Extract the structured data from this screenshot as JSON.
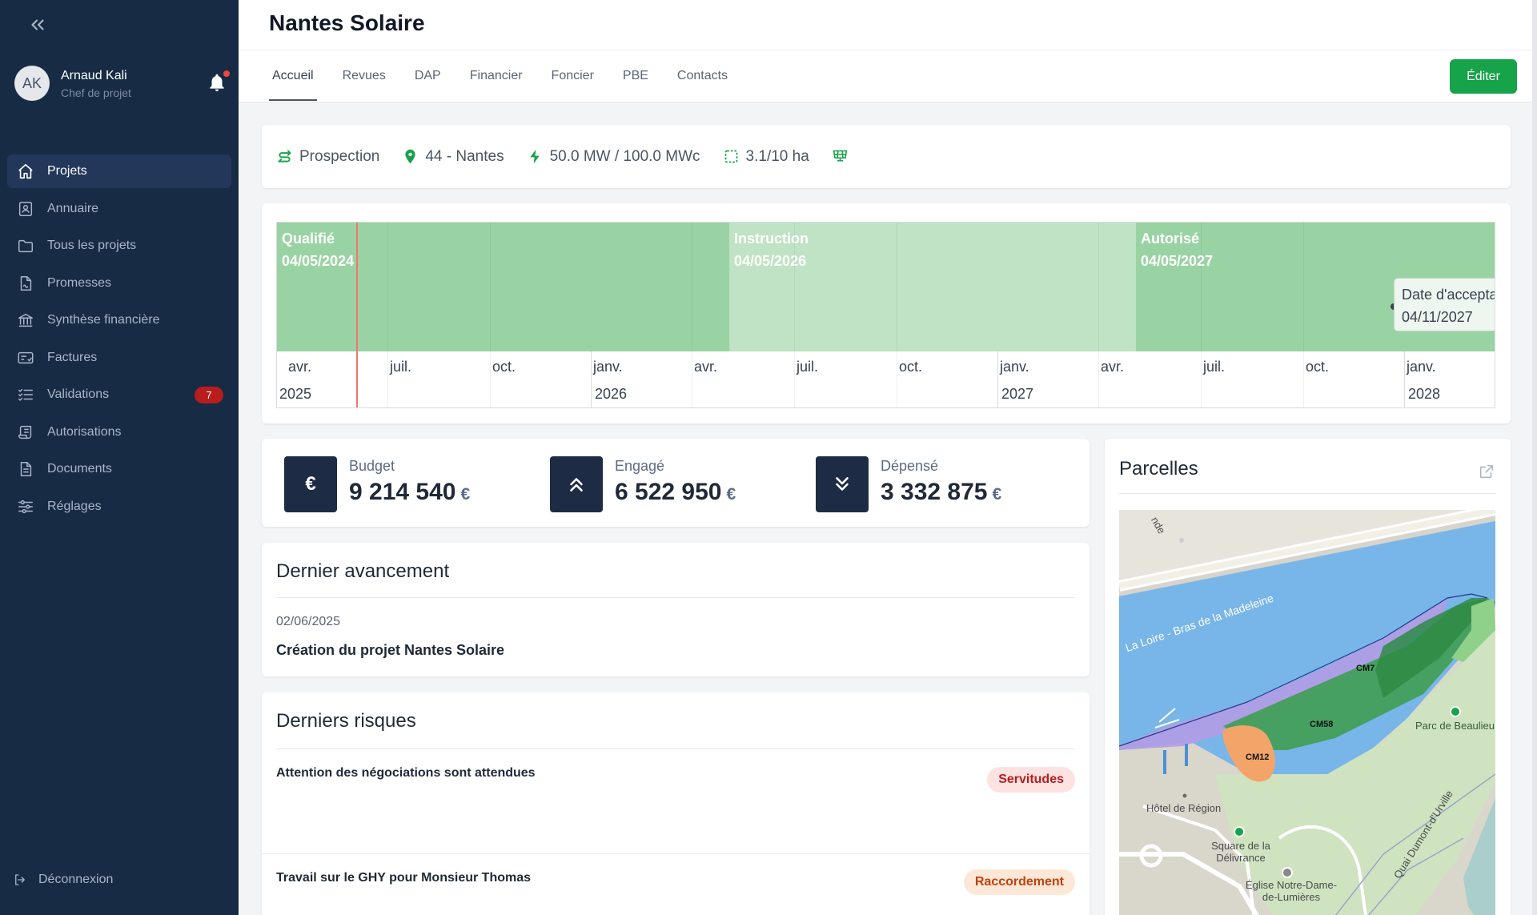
{
  "sidebar": {
    "user": {
      "initials": "AK",
      "name": "Arnaud Kali",
      "role": "Chef de projet"
    },
    "items": [
      {
        "label": "Projets",
        "icon": "home-icon",
        "active": true
      },
      {
        "label": "Annuaire",
        "icon": "contact-book-icon"
      },
      {
        "label": "Tous les projets",
        "icon": "folder-icon"
      },
      {
        "label": "Promesses",
        "icon": "document-signed-icon"
      },
      {
        "label": "Synthèse financière",
        "icon": "bank-icon"
      },
      {
        "label": "Factures",
        "icon": "invoice-icon"
      },
      {
        "label": "Validations",
        "icon": "checklist-icon",
        "badge": "7"
      },
      {
        "label": "Autorisations",
        "icon": "scroll-icon"
      },
      {
        "label": "Documents",
        "icon": "document-icon"
      },
      {
        "label": "Réglages",
        "icon": "sliders-icon"
      }
    ],
    "logout": "Déconnexion"
  },
  "header": {
    "title": "Nantes Solaire",
    "tabs": [
      "Accueil",
      "Revues",
      "DAP",
      "Financier",
      "Foncier",
      "PBE",
      "Contacts"
    ],
    "active_tab": "Accueil",
    "edit_label": "Éditer"
  },
  "info": {
    "status": "Prospection",
    "location": "44 - Nantes",
    "power": "50.0 MW / 100.0 MWc",
    "area": "3.1/10 ha",
    "accent": "#16a34a"
  },
  "timeline": {
    "phases": [
      {
        "name": "Qualifié",
        "date": "04/05/2024",
        "color": "#9ad3a3"
      },
      {
        "name": "Instruction",
        "date": "04/05/2026",
        "color": "#bfe3c4"
      },
      {
        "name": "Autorisé",
        "date": "04/05/2027",
        "color": "#9ad3a3"
      }
    ],
    "months": [
      "avr.",
      "juil.",
      "oct.",
      "janv.",
      "avr.",
      "juil.",
      "oct.",
      "janv.",
      "avr.",
      "juil.",
      "oct.",
      "janv."
    ],
    "years": [
      "2025",
      "2026",
      "2027",
      "2028"
    ],
    "milestone": {
      "label": "Date d'acceptation P",
      "date": "04/11/2027"
    }
  },
  "kpis": [
    {
      "label": "Budget",
      "value": "9 214 540",
      "currency": "€",
      "icon": "euro-icon"
    },
    {
      "label": "Engagé",
      "value": "6 522 950",
      "currency": "€",
      "icon": "double-chevron-up-icon"
    },
    {
      "label": "Dépensé",
      "value": "3 332 875",
      "currency": "€",
      "icon": "double-chevron-down-icon"
    }
  ],
  "progress": {
    "title": "Dernier avancement",
    "date": "02/06/2025",
    "text": "Création du projet Nantes Solaire"
  },
  "risks": {
    "title": "Derniers risques",
    "items": [
      {
        "text": "Attention des négociations sont attendues",
        "tag": "Servitudes"
      },
      {
        "text": "Travail sur le GHY pour Monsieur Thomas",
        "tag": "Raccordement"
      }
    ]
  },
  "parcels": {
    "title": "Parcelles",
    "map": {
      "river_label": "La Loire - Bras de la Madeleine",
      "parcel_labels": [
        "CM7",
        "CM58",
        "CM12"
      ],
      "places": [
        "Parc de Beaulieu",
        "Hôtel de Région",
        "Square de la Délivrance",
        "Église Notre-Dame-de-Lumières",
        "Quai Dumont-d'Urville"
      ],
      "partial_label": "nde"
    }
  }
}
